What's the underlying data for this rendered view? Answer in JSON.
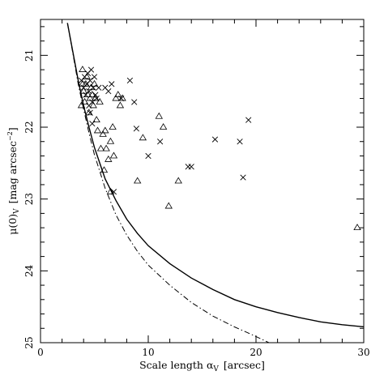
{
  "chart_data": {
    "type": "scatter",
    "title": "",
    "xlabel": "Scale length α",
    "xlabel_sub": "V",
    "xlabel_unit": "[arcsec]",
    "ylabel": "μ(0)",
    "ylabel_sub": "V",
    "ylabel_unit": "[mag arcsec",
    "ylabel_sup": "−2",
    "ylabel_close": "]",
    "xlim": [
      0,
      30
    ],
    "ylim": [
      25,
      20.5
    ],
    "y_inverted": true,
    "x_ticks": [
      0,
      10,
      20,
      30
    ],
    "x_tick_labels": [
      "0",
      "10",
      "20",
      "30"
    ],
    "y_ticks": [
      21,
      22,
      23,
      24,
      25
    ],
    "y_tick_labels": [
      "21",
      "22",
      "23",
      "24",
      "25"
    ],
    "x_minor_step": 2,
    "y_minor_step": 0.2,
    "grid": false,
    "series": [
      {
        "marker": "cross",
        "points": [
          [
            3.8,
            21.35
          ],
          [
            4.0,
            21.45
          ],
          [
            4.1,
            21.3
          ],
          [
            4.2,
            21.55
          ],
          [
            4.3,
            21.4
          ],
          [
            4.4,
            21.25
          ],
          [
            4.5,
            21.5
          ],
          [
            4.6,
            21.35
          ],
          [
            4.7,
            21.2
          ],
          [
            4.8,
            21.65
          ],
          [
            4.9,
            21.45
          ],
          [
            5.0,
            21.3
          ],
          [
            5.1,
            21.55
          ],
          [
            4.6,
            21.8
          ],
          [
            4.8,
            21.95
          ],
          [
            5.2,
            21.6
          ],
          [
            5.4,
            21.45
          ],
          [
            4.5,
            21.7
          ],
          [
            6.0,
            21.45
          ],
          [
            6.3,
            21.5
          ],
          [
            6.6,
            21.4
          ],
          [
            7.5,
            21.6
          ],
          [
            8.3,
            21.35
          ],
          [
            8.7,
            21.65
          ],
          [
            8.9,
            22.02
          ],
          [
            10.0,
            22.4
          ],
          [
            11.1,
            22.2
          ],
          [
            13.7,
            22.55
          ],
          [
            14.0,
            22.55
          ],
          [
            16.2,
            22.17
          ],
          [
            18.5,
            22.2
          ],
          [
            18.8,
            22.7
          ],
          [
            19.3,
            21.9
          ],
          [
            6.8,
            22.9
          ]
        ]
      },
      {
        "marker": "triangle",
        "points": [
          [
            3.8,
            21.7
          ],
          [
            3.9,
            21.4
          ],
          [
            4.0,
            21.5
          ],
          [
            4.1,
            21.65
          ],
          [
            4.2,
            21.4
          ],
          [
            4.3,
            21.3
          ],
          [
            4.4,
            21.55
          ],
          [
            4.5,
            21.8
          ],
          [
            4.6,
            21.6
          ],
          [
            4.7,
            21.45
          ],
          [
            4.8,
            21.55
          ],
          [
            4.9,
            21.7
          ],
          [
            5.0,
            21.4
          ],
          [
            5.1,
            21.6
          ],
          [
            5.2,
            21.9
          ],
          [
            5.3,
            22.05
          ],
          [
            5.5,
            21.65
          ],
          [
            5.6,
            22.3
          ],
          [
            5.8,
            22.1
          ],
          [
            6.0,
            22.05
          ],
          [
            6.1,
            22.3
          ],
          [
            6.3,
            22.45
          ],
          [
            6.5,
            22.2
          ],
          [
            6.7,
            22.0
          ],
          [
            6.8,
            22.4
          ],
          [
            7.0,
            21.6
          ],
          [
            7.2,
            21.55
          ],
          [
            7.4,
            21.7
          ],
          [
            7.6,
            21.6
          ],
          [
            5.9,
            22.6
          ],
          [
            6.5,
            22.9
          ],
          [
            9.0,
            22.75
          ],
          [
            9.5,
            22.15
          ],
          [
            11.0,
            21.85
          ],
          [
            11.4,
            22.0
          ],
          [
            11.9,
            23.1
          ],
          [
            12.8,
            22.75
          ],
          [
            29.4,
            23.4
          ],
          [
            3.9,
            21.2
          ]
        ]
      }
    ],
    "curves": [
      {
        "style": "solid",
        "points": [
          [
            2.5,
            20.55
          ],
          [
            3.0,
            20.95
          ],
          [
            3.5,
            21.35
          ],
          [
            4.0,
            21.7
          ],
          [
            4.5,
            22.0
          ],
          [
            5.0,
            22.28
          ],
          [
            6.0,
            22.72
          ],
          [
            7.0,
            23.02
          ],
          [
            8.0,
            23.28
          ],
          [
            9.0,
            23.48
          ],
          [
            10.0,
            23.65
          ],
          [
            12.0,
            23.9
          ],
          [
            14.0,
            24.1
          ],
          [
            16.0,
            24.26
          ],
          [
            18.0,
            24.4
          ],
          [
            20.0,
            24.5
          ],
          [
            22.0,
            24.58
          ],
          [
            24.0,
            24.65
          ],
          [
            26.0,
            24.71
          ],
          [
            28.0,
            24.75
          ],
          [
            30.0,
            24.78
          ]
        ]
      },
      {
        "style": "dashdot",
        "points": [
          [
            2.5,
            20.55
          ],
          [
            3.0,
            20.97
          ],
          [
            3.5,
            21.4
          ],
          [
            4.0,
            21.75
          ],
          [
            4.5,
            22.08
          ],
          [
            5.0,
            22.38
          ],
          [
            6.0,
            22.85
          ],
          [
            7.0,
            23.22
          ],
          [
            8.0,
            23.5
          ],
          [
            9.0,
            23.73
          ],
          [
            10.0,
            23.92
          ],
          [
            12.0,
            24.2
          ],
          [
            14.0,
            24.44
          ],
          [
            16.0,
            24.63
          ],
          [
            18.0,
            24.78
          ],
          [
            19.5,
            24.88
          ],
          [
            20.5,
            24.95
          ],
          [
            21.2,
            25.0
          ]
        ]
      }
    ]
  }
}
